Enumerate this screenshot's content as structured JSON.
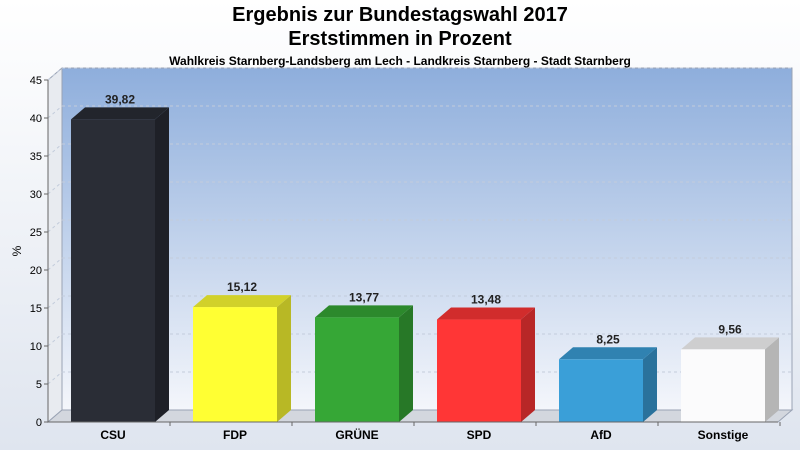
{
  "chart_data": {
    "type": "bar",
    "title": "Ergebnis zur Bundestagswahl 2017",
    "subtitle": "Erststimmen in Prozent",
    "caption": "Wahlkreis Starnberg-Landsberg am Lech - Landkreis Starnberg - Stadt Starnberg",
    "xlabel": "",
    "ylabel": "%",
    "ylim": [
      0,
      45
    ],
    "yticks": [
      0,
      5,
      10,
      15,
      20,
      25,
      30,
      35,
      40,
      45
    ],
    "grid": true,
    "categories": [
      "CSU",
      "FDP",
      "GRÜNE",
      "SPD",
      "AfD",
      "Sonstige"
    ],
    "values": [
      39.82,
      15.12,
      13.77,
      13.48,
      8.25,
      9.56
    ],
    "value_labels": [
      "39,82",
      "15,12",
      "13,77",
      "13,48",
      "8,25",
      "9,56"
    ],
    "colors": [
      "#2a2d36",
      "#ffff33",
      "#36a736",
      "#ff3636",
      "#3a9fd8",
      "#fbfbfc"
    ]
  }
}
